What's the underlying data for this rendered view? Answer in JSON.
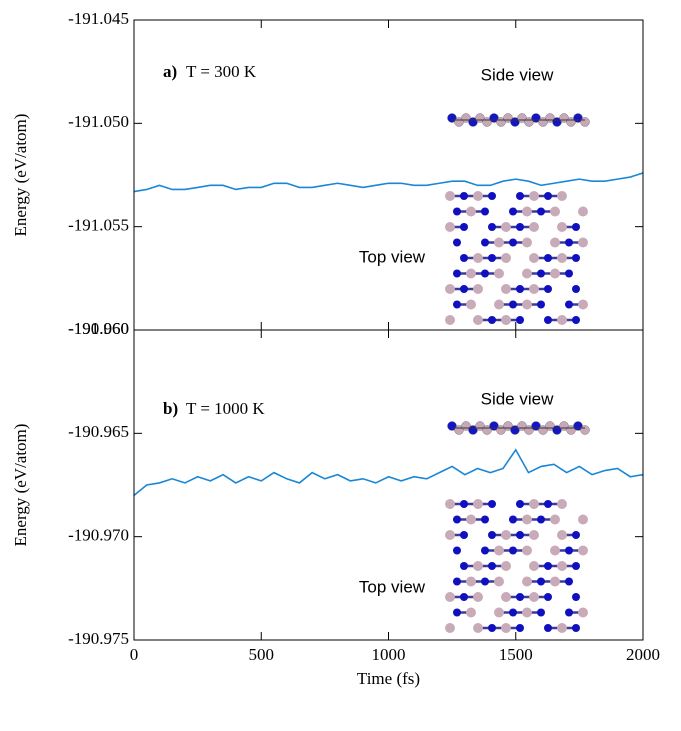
{
  "chart_data": [
    {
      "type": "line",
      "panel_label": "a)",
      "annotation": "T = 300 K",
      "side_view_label": "Side view",
      "top_view_label": "Top view",
      "ylabel": "Energy (eV/atom)",
      "color": "#1a87d6",
      "xlim": [
        0,
        2000
      ],
      "ylim": [
        -191.06,
        -191.045
      ],
      "yticks": [
        {
          "value": -191.06,
          "label": "-191.060"
        },
        {
          "value": -191.055,
          "label": "-191.055"
        },
        {
          "value": -191.05,
          "label": "-191.050"
        },
        {
          "value": -191.045,
          "label": "-191.045"
        }
      ],
      "x": [
        0,
        50,
        100,
        150,
        200,
        250,
        300,
        350,
        400,
        450,
        500,
        550,
        600,
        650,
        700,
        750,
        800,
        850,
        900,
        950,
        1000,
        1050,
        1100,
        1150,
        1200,
        1250,
        1300,
        1350,
        1400,
        1450,
        1500,
        1550,
        1600,
        1650,
        1700,
        1750,
        1800,
        1850,
        1900,
        1950,
        2000
      ],
      "values": [
        -191.0533,
        -191.0532,
        -191.053,
        -191.0532,
        -191.0532,
        -191.0531,
        -191.053,
        -191.053,
        -191.0532,
        -191.0531,
        -191.0531,
        -191.0529,
        -191.0529,
        -191.0531,
        -191.0531,
        -191.053,
        -191.0529,
        -191.053,
        -191.0531,
        -191.053,
        -191.0529,
        -191.0529,
        -191.053,
        -191.053,
        -191.0529,
        -191.0528,
        -191.0528,
        -191.053,
        -191.053,
        -191.0528,
        -191.0527,
        -191.0528,
        -191.053,
        -191.0529,
        -191.0528,
        -191.0527,
        -191.0528,
        -191.0528,
        -191.0527,
        -191.0526,
        -191.0524
      ]
    },
    {
      "type": "line",
      "panel_label": "b)",
      "annotation": "T = 1000 K",
      "side_view_label": "Side view",
      "top_view_label": "Top view",
      "ylabel": "Energy (eV/atom)",
      "xlabel": "Time (fs)",
      "color": "#1a87d6",
      "xlim": [
        0,
        2000
      ],
      "xticks": [
        0,
        500,
        1000,
        1500,
        2000
      ],
      "ylim": [
        -190.975,
        -190.96
      ],
      "yticks": [
        {
          "value": -190.975,
          "label": "-190.975"
        },
        {
          "value": -190.97,
          "label": "-190.970"
        },
        {
          "value": -190.965,
          "label": "-190.965"
        },
        {
          "value": -190.96,
          "label": "-190.960"
        }
      ],
      "x": [
        0,
        50,
        100,
        150,
        200,
        250,
        300,
        350,
        400,
        450,
        500,
        550,
        600,
        650,
        700,
        750,
        800,
        850,
        900,
        950,
        1000,
        1050,
        1100,
        1150,
        1200,
        1250,
        1300,
        1350,
        1400,
        1450,
        1500,
        1550,
        1600,
        1650,
        1700,
        1750,
        1800,
        1850,
        1900,
        1950,
        2000
      ],
      "values": [
        -190.968,
        -190.9675,
        -190.9674,
        -190.9672,
        -190.9674,
        -190.9671,
        -190.9673,
        -190.967,
        -190.9674,
        -190.9671,
        -190.9673,
        -190.9669,
        -190.9672,
        -190.9674,
        -190.9669,
        -190.9672,
        -190.967,
        -190.9673,
        -190.9672,
        -190.9674,
        -190.9671,
        -190.9673,
        -190.9671,
        -190.9672,
        -190.9669,
        -190.9666,
        -190.967,
        -190.9667,
        -190.9669,
        -190.9667,
        -190.9658,
        -190.9669,
        -190.9666,
        -190.9665,
        -190.9669,
        -190.9666,
        -190.967,
        -190.9668,
        -190.9667,
        -190.9671,
        -190.967
      ]
    }
  ]
}
